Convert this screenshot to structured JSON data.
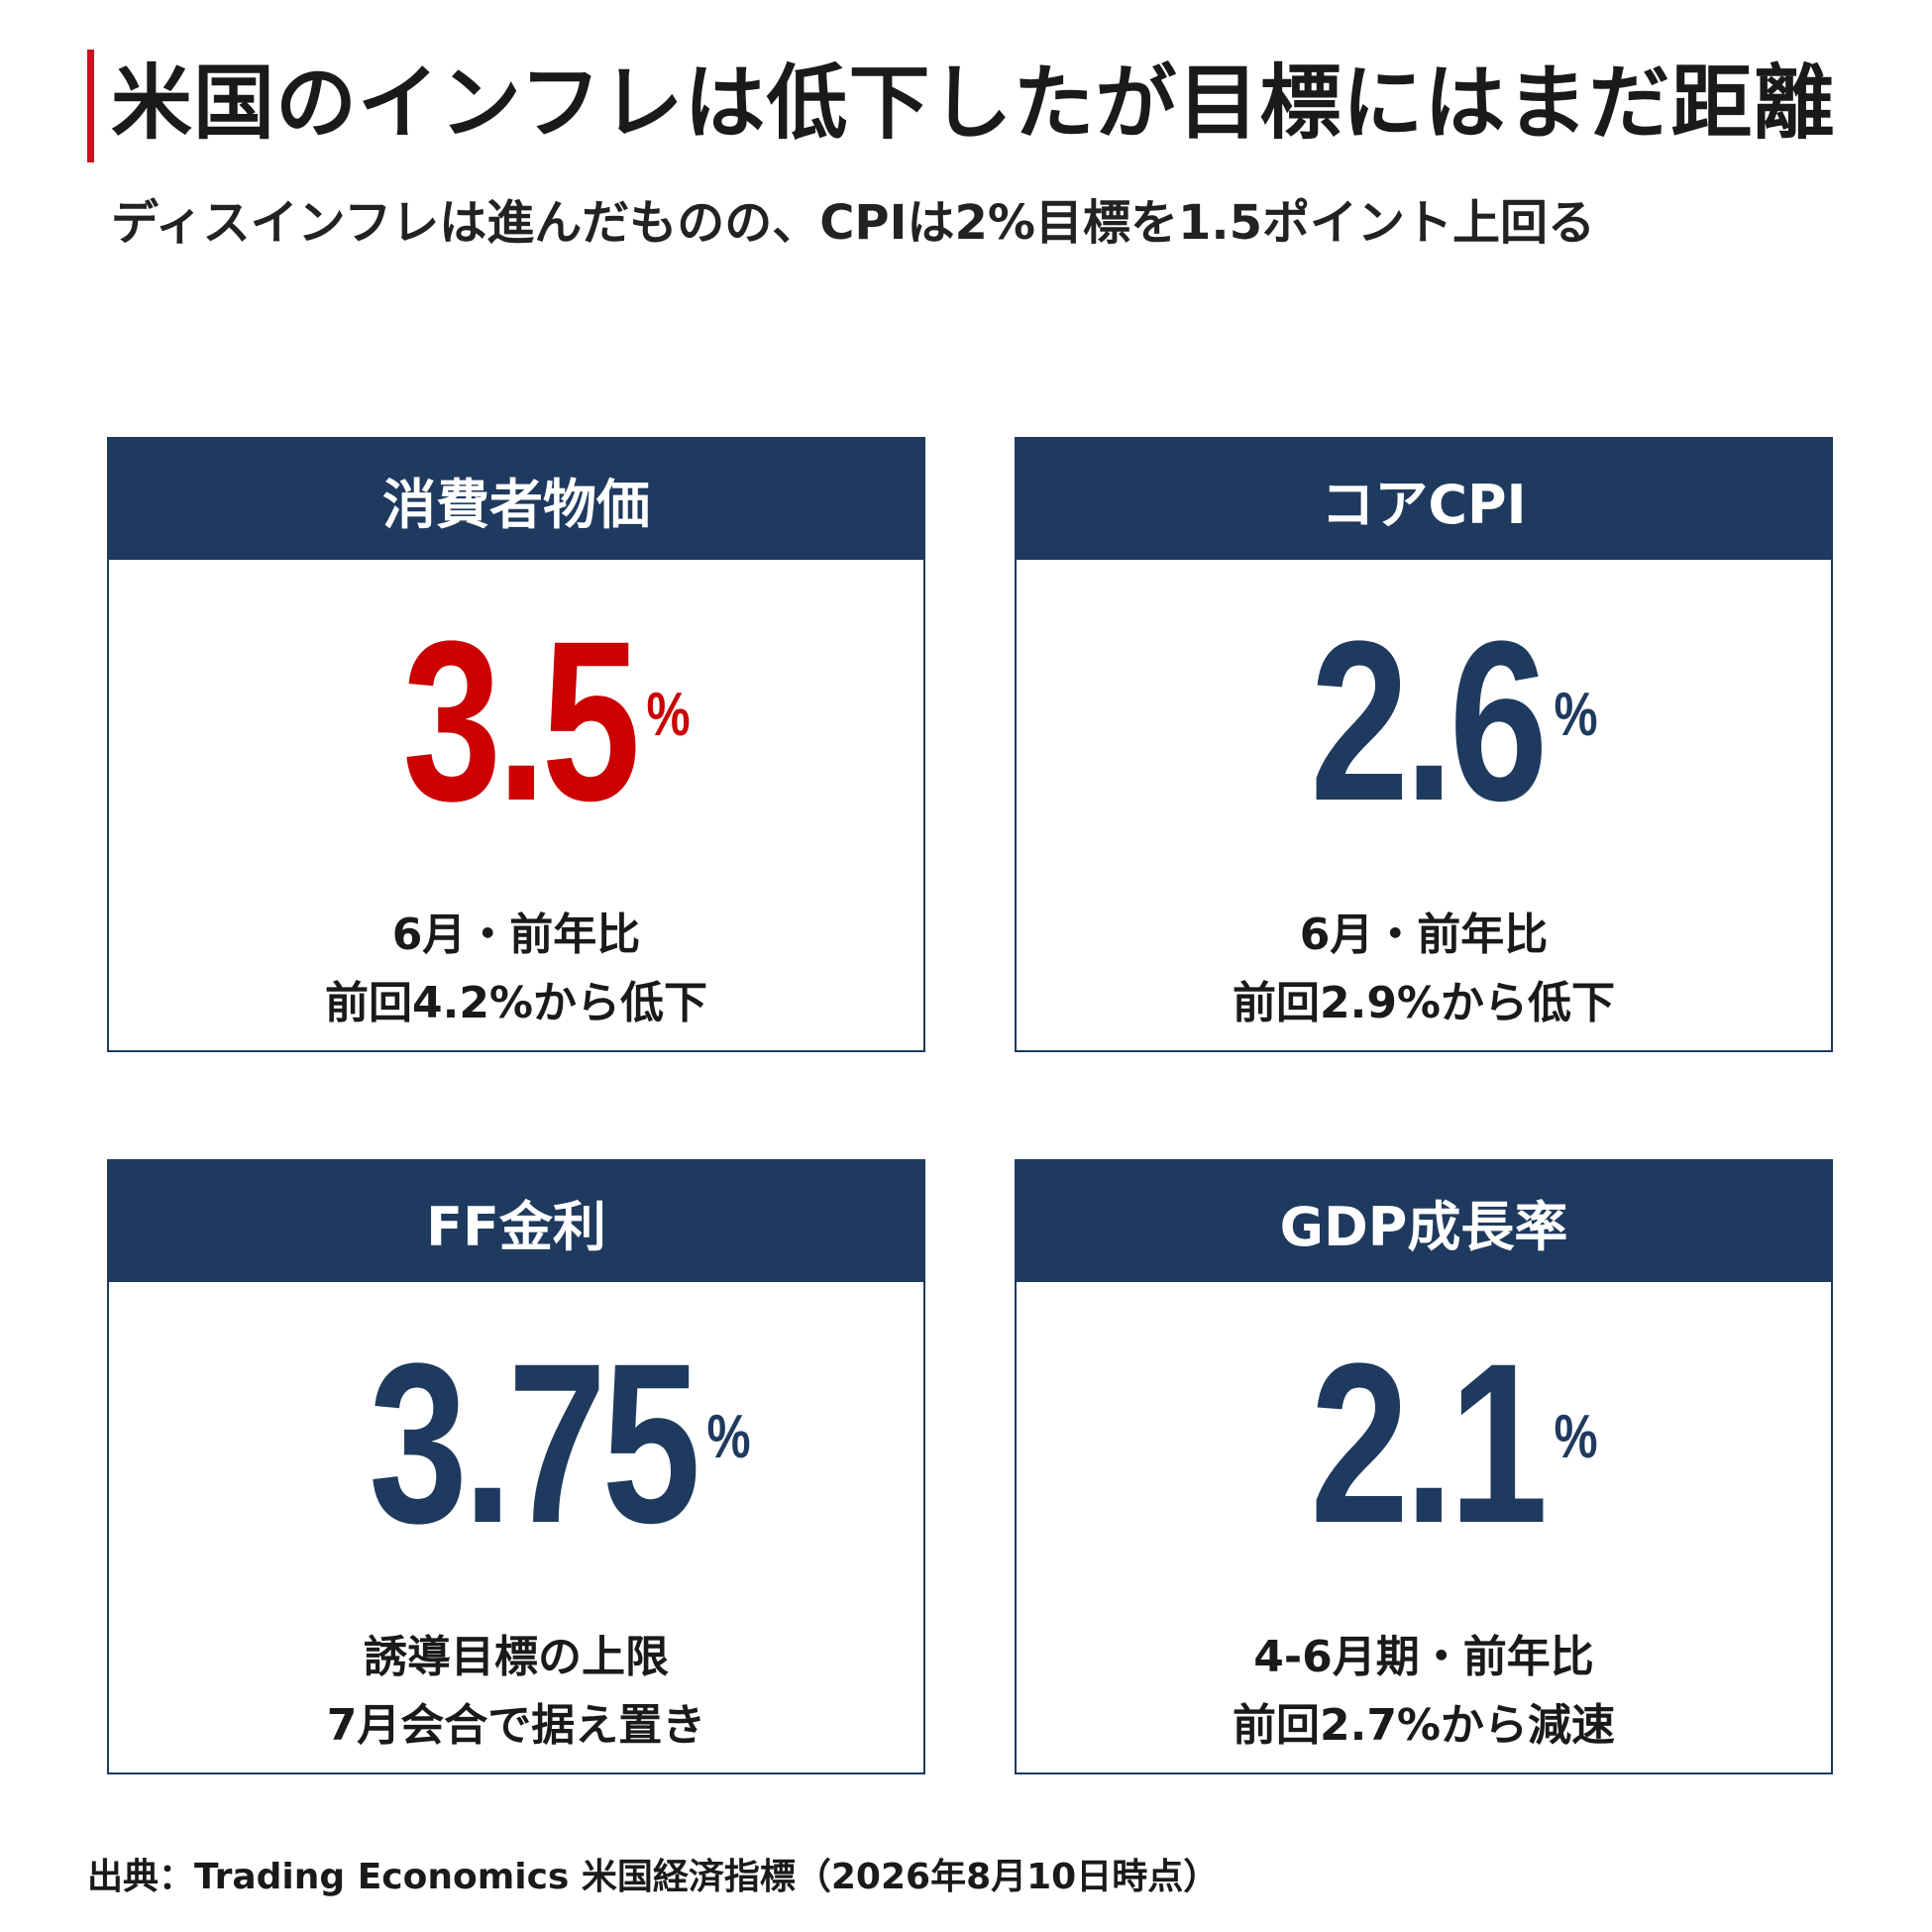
{
  "header": {
    "title": "米国のインフレは低下したが目標にはまだ距離",
    "subtitle": "ディスインフレは進んだものの、CPIは2%目標を1.5ポイント上回る"
  },
  "colors": {
    "accent_red": "#c8141e",
    "navy": "#1f3a5f",
    "value_red": "#cc0000"
  },
  "cards": [
    {
      "label": "消費者物価",
      "value": "3.5",
      "unit": "%",
      "value_color": "#cc0000",
      "note_line1": "6月・前年比",
      "note_line2": "前回4.2%から低下"
    },
    {
      "label": "コアCPI",
      "value": "2.6",
      "unit": "%",
      "value_color": "#1f3a5f",
      "note_line1": "6月・前年比",
      "note_line2": "前回2.9%から低下"
    },
    {
      "label": "FF金利",
      "value": "3.75",
      "unit": "%",
      "value_color": "#1f3a5f",
      "note_line1": "誘導目標の上限",
      "note_line2": "7月会合で据え置き"
    },
    {
      "label": "GDP成長率",
      "value": "2.1",
      "unit": "%",
      "value_color": "#1f3a5f",
      "note_line1": "4-6月期・前年比",
      "note_line2": "前回2.7%から減速"
    }
  ],
  "footer": {
    "source": "出典：Trading Economics 米国経済指標（2026年8月10日時点）"
  }
}
